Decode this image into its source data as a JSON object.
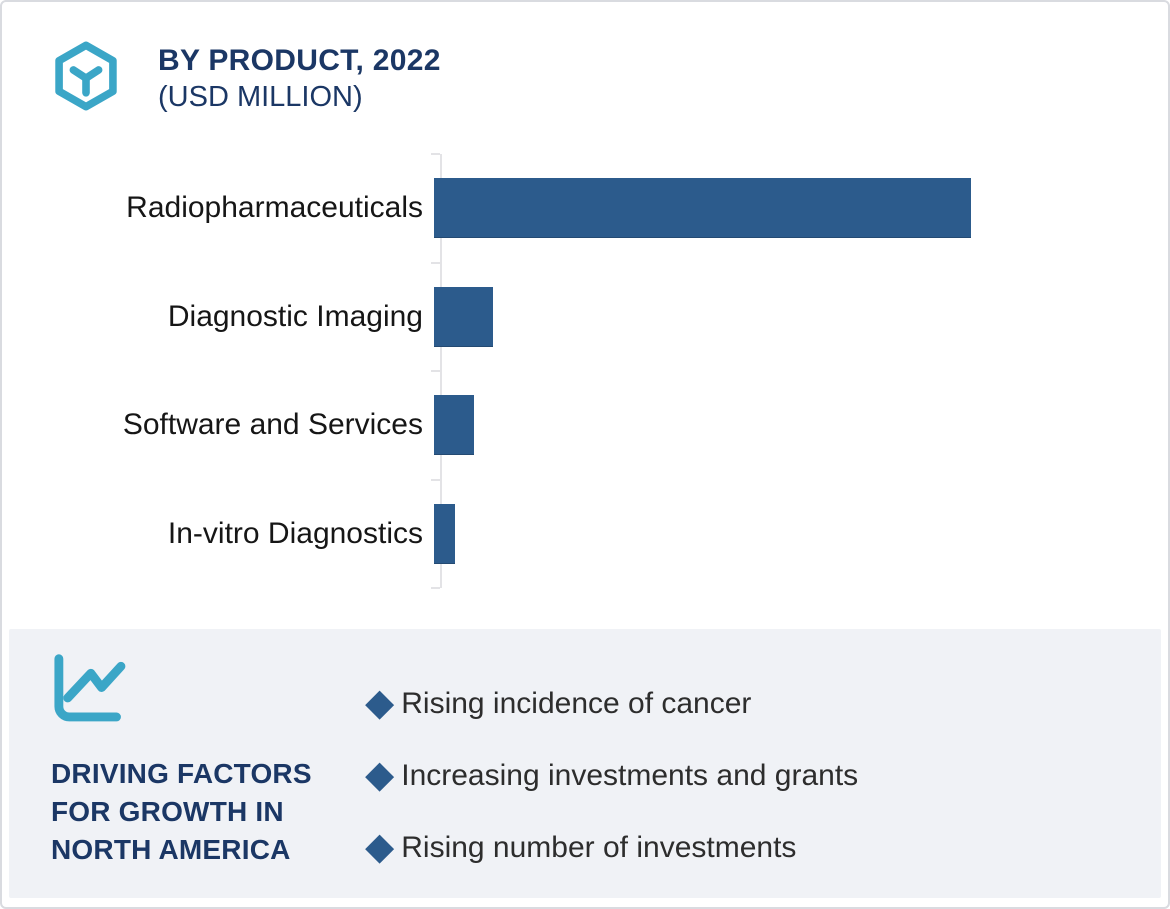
{
  "header": {
    "title": "BY PRODUCT, 2022",
    "subtitle": "(USD MILLION)"
  },
  "chart_data": {
    "type": "bar",
    "orientation": "horizontal",
    "title": "BY PRODUCT, 2022",
    "subtitle": "(USD MILLION)",
    "value_unit": "USD Million",
    "categories": [
      "Radiopharmaceuticals",
      "Diagnostic Imaging",
      "Software and Services",
      "In-vitro Diagnostics"
    ],
    "values_relative": [
      1.0,
      0.11,
      0.075,
      0.04
    ],
    "value_axis_labels_visible": false,
    "data_labels_visible": false,
    "grid": false,
    "legend": false,
    "bar_color": "#2C5B8C",
    "axis_color": "#E3E3E6"
  },
  "driving_factors": {
    "title": "DRIVING FACTORS\nFOR GROWTH IN\nNORTH AMERICA",
    "bullet_glyph": "◆",
    "items": [
      "Rising incidence of cancer",
      "Increasing investments and grants",
      "Rising number of investments"
    ]
  },
  "icons": {
    "header_icon": "hexagon-cube-icon",
    "panel_icon": "line-chart-icon"
  },
  "colors": {
    "teal": "#3BA6C7",
    "navy": "#1B3765",
    "bar_blue": "#2C5B8C",
    "panel_background": "#F0F2F6",
    "card_border": "#D9DBE0"
  }
}
